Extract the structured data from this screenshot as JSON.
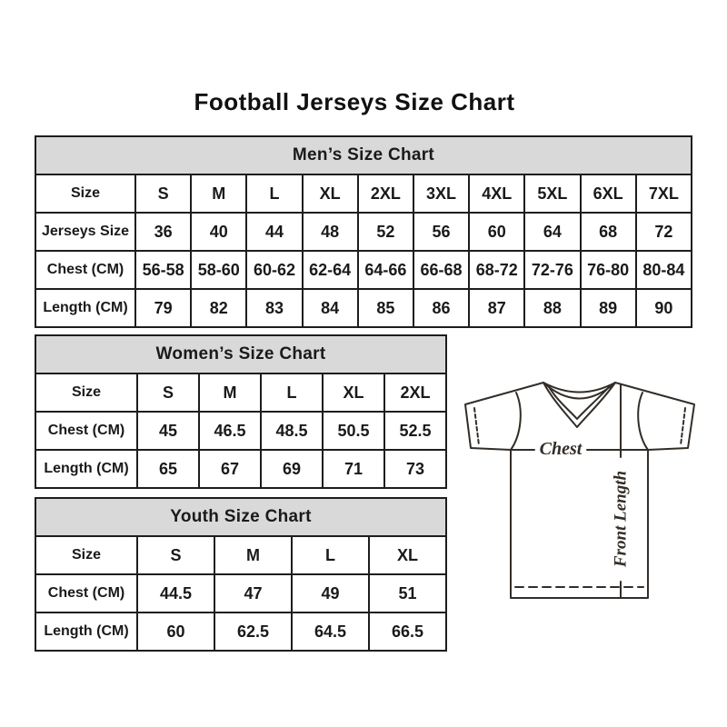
{
  "page": {
    "title": "Football Jerseys Size Chart"
  },
  "tables": [
    {
      "id": "men",
      "title": "Men’s Size Chart",
      "rows": [
        [
          "Size",
          "S",
          "M",
          "L",
          "XL",
          "2XL",
          "3XL",
          "4XL",
          "5XL",
          "6XL",
          "7XL"
        ],
        [
          "Jerseys Size",
          "36",
          "40",
          "44",
          "48",
          "52",
          "56",
          "60",
          "64",
          "68",
          "72"
        ],
        [
          "Chest (CM)",
          "56-58",
          "58-60",
          "60-62",
          "62-64",
          "64-66",
          "66-68",
          "68-72",
          "72-76",
          "76-80",
          "80-84"
        ],
        [
          "Length (CM)",
          "79",
          "82",
          "83",
          "84",
          "85",
          "86",
          "87",
          "88",
          "89",
          "90"
        ]
      ]
    },
    {
      "id": "women",
      "title": "Women’s Size Chart",
      "rows": [
        [
          "Size",
          "S",
          "M",
          "L",
          "XL",
          "2XL"
        ],
        [
          "Chest (CM)",
          "45",
          "46.5",
          "48.5",
          "50.5",
          "52.5"
        ],
        [
          "Length (CM)",
          "65",
          "67",
          "69",
          "71",
          "73"
        ]
      ]
    },
    {
      "id": "youth",
      "title": "Youth Size Chart",
      "rows": [
        [
          "Size",
          "S",
          "M",
          "L",
          "XL"
        ],
        [
          "Chest (CM)",
          "44.5",
          "47",
          "49",
          "51"
        ],
        [
          "Length (CM)",
          "60",
          "62.5",
          "64.5",
          "66.5"
        ]
      ]
    }
  ],
  "diagram": {
    "chest_label": "Chest",
    "front_length_label": "Front Length"
  },
  "colors": {
    "table_header_bg": "#d9d9d9",
    "table_border": "#1d1d1d",
    "text": "#1a1a1a",
    "jersey_line": "#332d28"
  }
}
